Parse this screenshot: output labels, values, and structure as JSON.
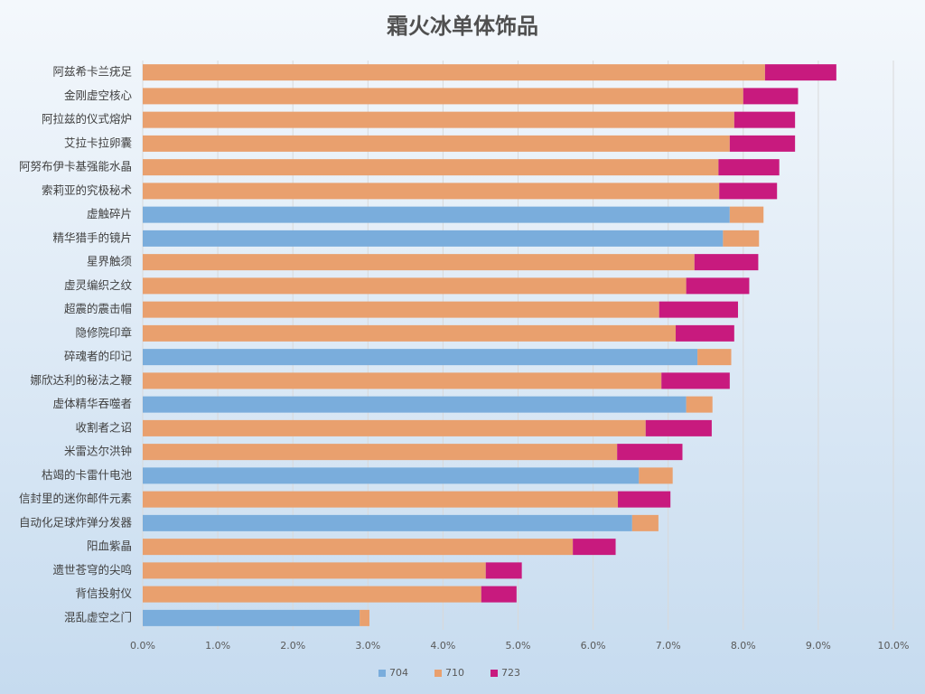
{
  "chart_data": {
    "type": "stacked-bar-horizontal",
    "title": "霜火冰单体饰品",
    "categories": [
      "阿兹希卡兰疣足",
      "金刚虚空核心",
      "阿拉兹的仪式熔炉",
      "艾拉卡拉卵囊",
      "阿努布伊卡基强能水晶",
      "索莉亚的究极秘术",
      "虚触碎片",
      "精华猎手的镜片",
      "星界触须",
      "虚灵编织之纹",
      "超震的震击帽",
      "隐修院印章",
      "碎魂者的印记",
      "娜欣达利的秘法之鞭",
      "虚体精华吞噬者",
      "收割者之诏",
      "米雷达尔洪钟",
      "枯竭的卡雷什电池",
      "信封里的迷你邮件元素",
      "自动化足球炸弹分发器",
      "阳血紫晶",
      "遗世苍穹的尖鸣",
      "背信投射仪",
      "混乱虚空之门"
    ],
    "series": [
      {
        "name": "704",
        "color": "#7aaddc",
        "values": [
          null,
          null,
          null,
          null,
          null,
          null,
          7.82,
          7.73,
          null,
          null,
          null,
          null,
          7.39,
          null,
          7.24,
          null,
          null,
          6.61,
          null,
          6.52,
          null,
          null,
          null,
          2.89
        ]
      },
      {
        "name": "710",
        "color": "#e9a06e",
        "values": [
          8.29,
          8.0,
          7.88,
          7.82,
          7.67,
          7.68,
          0.45,
          0.48,
          7.35,
          7.24,
          6.88,
          7.1,
          0.45,
          6.91,
          0.35,
          6.7,
          6.32,
          0.45,
          6.33,
          0.35,
          5.73,
          4.57,
          4.51,
          0.13
        ]
      },
      {
        "name": "723",
        "color": "#c81a7e",
        "values": [
          0.95,
          0.73,
          0.81,
          0.87,
          0.81,
          0.77,
          null,
          null,
          0.85,
          0.84,
          1.05,
          0.78,
          null,
          0.91,
          null,
          0.88,
          0.87,
          null,
          0.7,
          null,
          0.57,
          0.48,
          0.47,
          null
        ]
      }
    ],
    "xlim": [
      0,
      10
    ],
    "xticks": [
      {
        "value": 0,
        "label": "0.0%"
      },
      {
        "value": 1,
        "label": "1.0%"
      },
      {
        "value": 2,
        "label": "2.0%"
      },
      {
        "value": 3,
        "label": "3.0%"
      },
      {
        "value": 4,
        "label": "4.0%"
      },
      {
        "value": 5,
        "label": "5.0%"
      },
      {
        "value": 6,
        "label": "6.0%"
      },
      {
        "value": 7,
        "label": "7.0%"
      },
      {
        "value": 8,
        "label": "8.0%"
      },
      {
        "value": 9,
        "label": "9.0%"
      },
      {
        "value": 10,
        "label": "10.0%"
      }
    ],
    "grid": true,
    "legend": "bottom"
  }
}
